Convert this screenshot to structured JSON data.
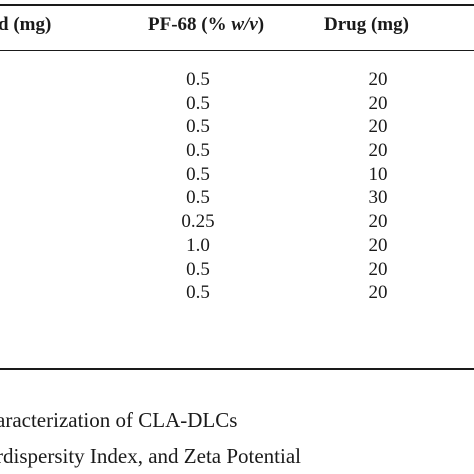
{
  "table": {
    "headers": {
      "col1_partial": "d (mg)",
      "col2_prefix": "PF-68 (% ",
      "col2_italic": "w/v",
      "col2_suffix": ")",
      "col3": "Drug (mg)"
    },
    "rows": [
      {
        "pf68": "0.5",
        "drug": "20"
      },
      {
        "pf68": "0.5",
        "drug": "20"
      },
      {
        "pf68": "0.5",
        "drug": "20"
      },
      {
        "pf68": "0.5",
        "drug": "20"
      },
      {
        "pf68": "0.5",
        "drug": "10"
      },
      {
        "pf68": "0.5",
        "drug": "30"
      },
      {
        "pf68": "0.25",
        "drug": "20"
      },
      {
        "pf68": "1.0",
        "drug": "20"
      },
      {
        "pf68": "0.5",
        "drug": "20"
      },
      {
        "pf68": "0.5",
        "drug": "20"
      }
    ]
  },
  "caption": {
    "line1": "aracterization of CLA-DLCs",
    "line2": "rdispersity Index, and Zeta Potential"
  }
}
